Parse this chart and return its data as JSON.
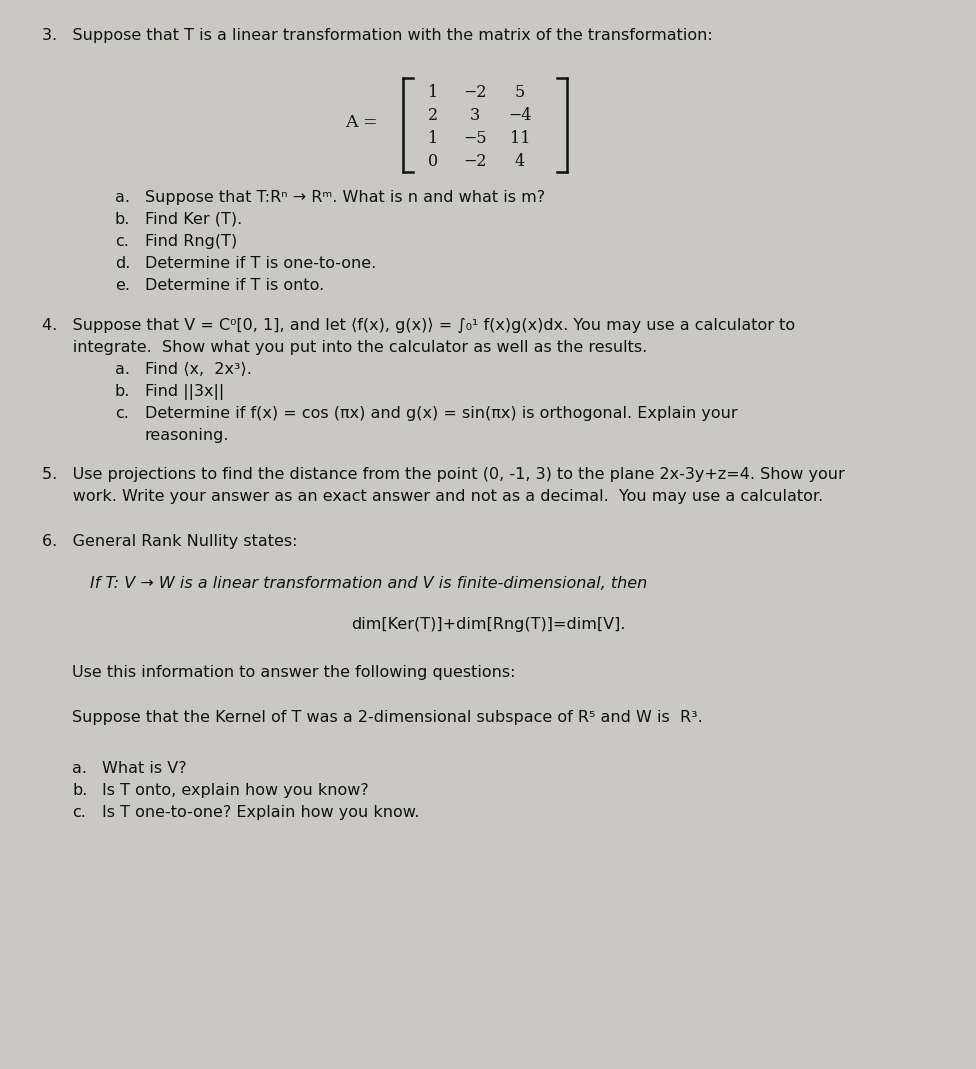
{
  "bg_color": "#c9c9c2",
  "text_color": "#111111",
  "fs": 11.5,
  "lm": 0.05,
  "line1": "3.   Suppose that T is a linear transformation with the matrix of the transformation:",
  "matrix_rows": [
    [
      "1",
      "−2",
      "5"
    ],
    [
      "2",
      "3",
      "−4"
    ],
    [
      "1",
      "−5",
      "11"
    ],
    [
      "0",
      "−2",
      "4"
    ]
  ],
  "q3_parts": [
    [
      "a.",
      "Suppose that T:Rⁿ → Rᵐ. What is n and what is m?"
    ],
    [
      "b.",
      "Find Ker (T)."
    ],
    [
      "c.",
      "Find Rng(T)"
    ],
    [
      "d.",
      "Determine if T is one-to-one."
    ],
    [
      "e.",
      "Determine if T is onto."
    ]
  ],
  "q4_line1": "4.   Suppose that V = C⁰[0, 1], and let ⟨f(x), g(x)⟩ = ∫₀¹ f(x)g(x)dx. You may use a calculator to",
  "q4_line2": "      integrate.  Show what you put into the calculator as well as the results.",
  "q4_parts": [
    [
      "a.",
      "Find ⟨x,  2x³⟩."
    ],
    [
      "b.",
      "Find ||3x||"
    ],
    [
      "c.",
      "Determine if f(x) = cos (πx) and g(x) = sin(πx) is orthogonal. Explain your"
    ],
    [
      "",
      "reasoning."
    ]
  ],
  "q5_line1": "5.   Use projections to find the distance from the point (0, -1, 3) to the plane 2x-3y+z=4. Show your",
  "q5_line2": "      work. Write your answer as an exact answer and not as a decimal.  You may use a calculator.",
  "q6_intro": "6.   General Rank Nullity states:",
  "q6_if_line": "If T: V → W is a linear transformation and V is finite-dimensional, then",
  "q6_formula": "dim[Ker(T)]+dim[Rng(T)]=dim[V].",
  "q6_use": "Use this information to answer the following questions:",
  "q6_suppose": "Suppose that the Kernel of T was a 2-dimensional subspace of R⁵ and W is  R³.",
  "q6_parts": [
    [
      "a.",
      "What is V?"
    ],
    [
      "b.",
      "Is T onto, explain how you know?"
    ],
    [
      "c.",
      "Is T one-to-one? Explain how you know."
    ]
  ]
}
